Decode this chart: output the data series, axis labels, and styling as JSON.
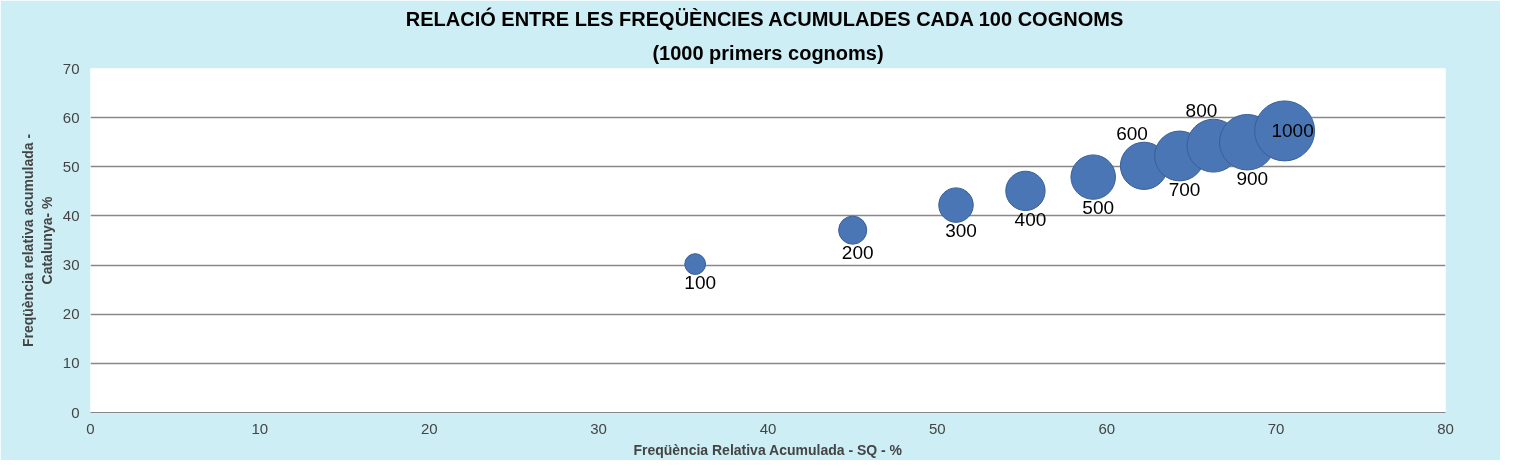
{
  "chart_data": {
    "type": "bubble",
    "title": "RELACIÓ ENTRE LES FREQÜÈNCIES  ACUMULADES CADA 100 COGNOMS",
    "subtitle": "(1000 primers cognoms)",
    "xlabel": "Freqüència Relativa Acumulada - SQ - %",
    "ylabel": "Freqüència relativa acumulada -\nCatalunya- %",
    "x": [
      35.7,
      45.0,
      51.1,
      55.2,
      59.2,
      62.2,
      64.3,
      66.3,
      68.3,
      70.5
    ],
    "values": [
      30.2,
      37.1,
      42.2,
      45.1,
      47.9,
      50.2,
      52.2,
      54.3,
      55.0,
      57.3
    ],
    "sizes": [
      0.12,
      0.22,
      0.33,
      0.43,
      0.55,
      0.62,
      0.69,
      0.78,
      0.86,
      1
    ],
    "annotations": [
      {
        "text": "100",
        "x": 35.7,
        "y": 30.2
      },
      {
        "text": "200",
        "x": 45.0,
        "y": 37.1
      },
      {
        "text": "300",
        "x": 51.1,
        "y": 42.2
      },
      {
        "text": "400",
        "x": 55.2,
        "y": 45.1
      },
      {
        "text": "500",
        "x": 59.2,
        "y": 47.9
      },
      {
        "text": "600",
        "x": 62.2,
        "y": 50.2
      },
      {
        "text": "700",
        "x": 64.3,
        "y": 52.2
      },
      {
        "text": "800",
        "x": 66.3,
        "y": 54.3
      },
      {
        "text": "900",
        "x": 68.3,
        "y": 55.0
      },
      {
        "text": "1000",
        "x": 70.5,
        "y": 57.3
      }
    ],
    "color": "#4a76b5",
    "xlim": [
      0,
      80
    ],
    "xticks": [
      0,
      10,
      20,
      30,
      40,
      50,
      60,
      70,
      80
    ],
    "ylim": [
      0,
      70
    ],
    "yticks": [
      0,
      10,
      20,
      30,
      40,
      50,
      60,
      70
    ],
    "grid": "y"
  }
}
